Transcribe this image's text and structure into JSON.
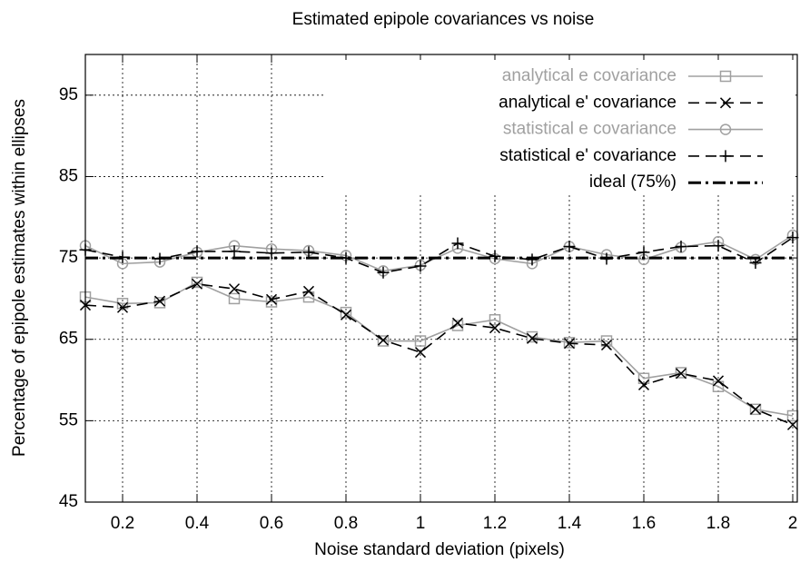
{
  "chart_data": {
    "type": "line",
    "title": "Estimated epipole covariances vs noise",
    "x_label": "Noise standard deviation (pixels)",
    "y_label": "Percentage of epipole estimates within ellipses",
    "x": [
      0.1,
      0.2,
      0.3,
      0.4,
      0.5,
      0.6,
      0.7,
      0.8,
      0.9,
      1.0,
      1.1,
      1.2,
      1.3,
      1.4,
      1.5,
      1.6,
      1.7,
      1.8,
      1.9,
      2.0
    ],
    "series": [
      {
        "name": "analytical e covariance",
        "color": "#a0a0a0",
        "style": "solid",
        "marker": "square",
        "values": [
          70.2,
          69.4,
          69.5,
          72.0,
          70.0,
          69.6,
          70.2,
          68.3,
          64.8,
          64.8,
          66.7,
          67.4,
          65.3,
          64.6,
          64.8,
          60.2,
          60.9,
          59.2,
          56.4,
          55.6
        ]
      },
      {
        "name": "analytical e' covariance",
        "color": "#000000",
        "style": "dashed",
        "marker": "cross",
        "values": [
          69.2,
          68.9,
          69.7,
          71.8,
          71.2,
          69.9,
          70.9,
          68.0,
          64.9,
          63.4,
          67.0,
          66.4,
          65.1,
          64.5,
          64.3,
          59.4,
          60.8,
          59.9,
          56.4,
          54.5
        ]
      },
      {
        "name": "statistical e covariance",
        "color": "#a0a0a0",
        "style": "solid",
        "marker": "circle",
        "values": [
          76.5,
          74.3,
          74.5,
          75.7,
          76.5,
          76.1,
          75.9,
          75.3,
          73.4,
          74.1,
          76.2,
          74.9,
          74.3,
          76.4,
          75.4,
          74.8,
          76.3,
          77.0,
          74.8,
          77.8
        ]
      },
      {
        "name": "statistical e' covariance",
        "color": "#000000",
        "style": "dashed",
        "marker": "plus",
        "values": [
          76.0,
          75.1,
          74.9,
          75.8,
          75.8,
          75.6,
          75.7,
          75.0,
          73.2,
          74.0,
          76.8,
          75.2,
          74.8,
          76.4,
          74.9,
          75.7,
          76.4,
          76.5,
          74.4,
          77.5
        ]
      },
      {
        "name": "ideal (75%)",
        "color": "#000000",
        "style": "dashdot",
        "marker": "none",
        "values": [
          75,
          75,
          75,
          75,
          75,
          75,
          75,
          75,
          75,
          75,
          75,
          75,
          75,
          75,
          75,
          75,
          75,
          75,
          75,
          75
        ]
      }
    ],
    "xlim": [
      0.1,
      2
    ],
    "ylim": [
      45,
      100
    ],
    "xticks": [
      0.2,
      0.4,
      0.6,
      0.8,
      1,
      1.2,
      1.4,
      1.6,
      1.8,
      2
    ],
    "yticks": [
      45,
      55,
      65,
      75,
      85,
      95
    ],
    "grid": true,
    "legend": "top-right"
  }
}
